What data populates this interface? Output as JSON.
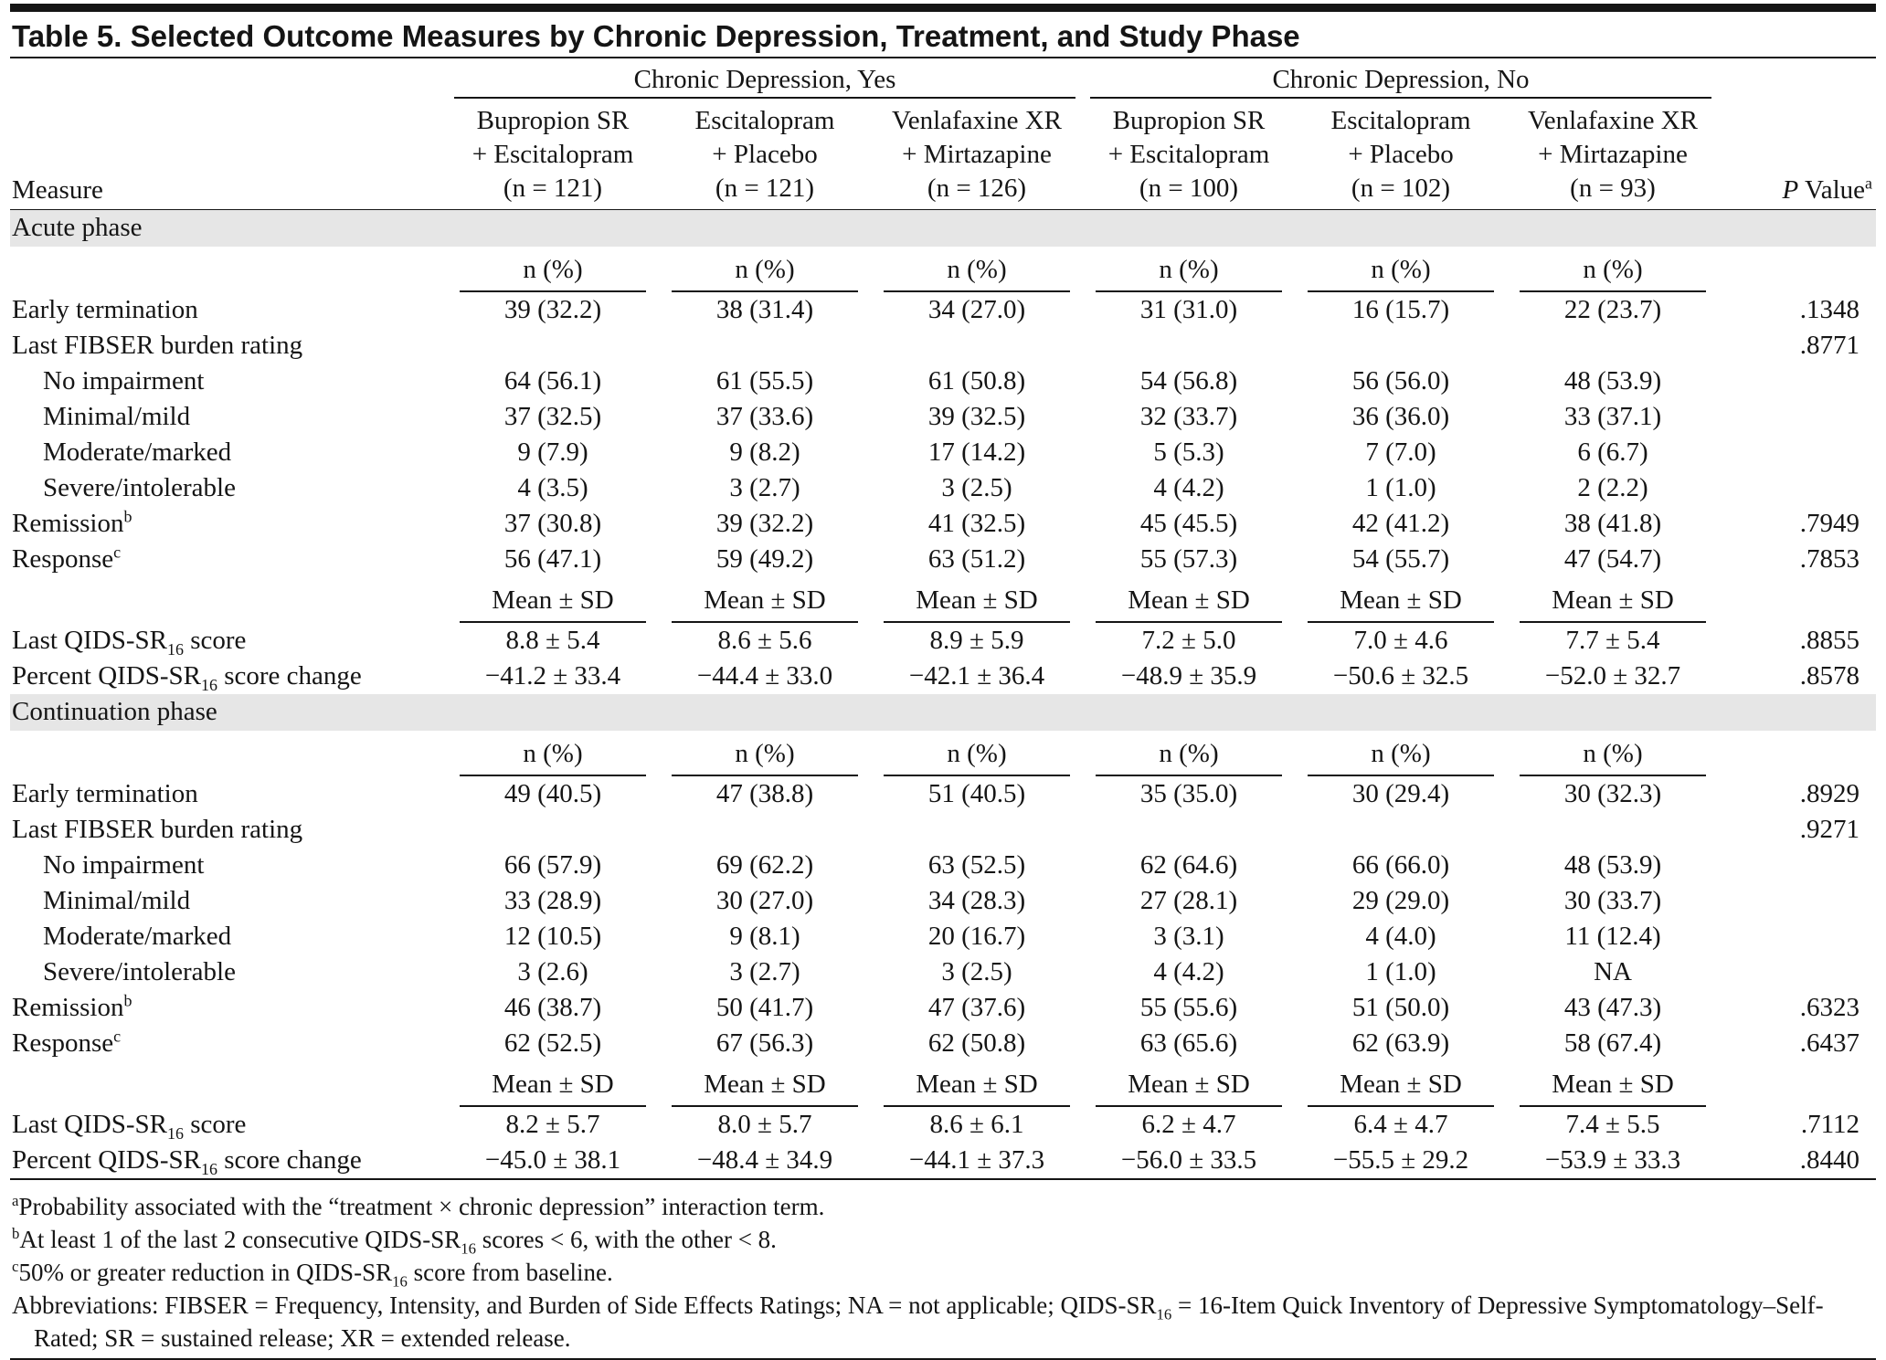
{
  "title": "Table 5. Selected Outcome Measures by Chronic Depression, Treatment, and Study Phase",
  "header": {
    "measure": "Measure",
    "groups": [
      "Chronic Depression, Yes",
      "Chronic Depression, No"
    ],
    "columns": [
      [
        "Bupropion SR",
        "+ Escitalopram",
        "(n = 121)"
      ],
      [
        "Escitalopram",
        "+ Placebo",
        "(n = 121)"
      ],
      [
        "Venlafaxine XR",
        "+ Mirtazapine",
        "(n = 126)"
      ],
      [
        "Bupropion SR",
        "+ Escitalopram",
        "(n = 100)"
      ],
      [
        "Escitalopram",
        "+ Placebo",
        "(n = 102)"
      ],
      [
        "Venlafaxine XR",
        "+ Mirtazapine",
        "(n = 93)"
      ]
    ],
    "p_value": [
      {
        "i": "P"
      },
      {
        "t": " Value"
      },
      {
        "sup": "a"
      }
    ]
  },
  "phases": [
    {
      "name": "Acute phase",
      "blocks": [
        {
          "unit": "n (%)",
          "rows": [
            {
              "label": [
                {
                  "t": "Early termination"
                }
              ],
              "values": [
                "39 (32.2)",
                "38 (31.4)",
                "34 (27.0)",
                "31 (31.0)",
                "16 (15.7)",
                "22 (23.7)"
              ],
              "p": ".1348"
            },
            {
              "label": [
                {
                  "t": "Last FIBSER burden rating"
                }
              ],
              "p": ".8771",
              "items": [
                {
                  "label": "No impairment",
                  "values": [
                    "64 (56.1)",
                    "61 (55.5)",
                    "61 (50.8)",
                    "54 (56.8)",
                    "56 (56.0)",
                    "48 (53.9)"
                  ]
                },
                {
                  "label": "Minimal/mild",
                  "values": [
                    "37 (32.5)",
                    "37 (33.6)",
                    "39 (32.5)",
                    "32 (33.7)",
                    "36 (36.0)",
                    "33 (37.1)"
                  ]
                },
                {
                  "label": "Moderate/marked",
                  "values": [
                    "9 (7.9)",
                    "9 (8.2)",
                    "17 (14.2)",
                    "5 (5.3)",
                    "7 (7.0)",
                    "6 (6.7)"
                  ]
                },
                {
                  "label": "Severe/intolerable",
                  "values": [
                    "4 (3.5)",
                    "3 (2.7)",
                    "3 (2.5)",
                    "4 (4.2)",
                    "1 (1.0)",
                    "2 (2.2)"
                  ]
                }
              ]
            },
            {
              "label": [
                {
                  "t": "Remission"
                },
                {
                  "sup": "b"
                }
              ],
              "values": [
                "37 (30.8)",
                "39 (32.2)",
                "41 (32.5)",
                "45 (45.5)",
                "42 (41.2)",
                "38 (41.8)"
              ],
              "p": ".7949"
            },
            {
              "label": [
                {
                  "t": "Response"
                },
                {
                  "sup": "c"
                }
              ],
              "values": [
                "56 (47.1)",
                "59 (49.2)",
                "63 (51.2)",
                "55 (57.3)",
                "54 (55.7)",
                "47 (54.7)"
              ],
              "p": ".7853"
            }
          ]
        },
        {
          "unit": "Mean ± SD",
          "rows": [
            {
              "label": [
                {
                  "t": "Last QIDS-SR"
                },
                {
                  "sub": "16"
                },
                {
                  "t": " score"
                }
              ],
              "values": [
                "8.8 ± 5.4",
                "8.6 ± 5.6",
                "8.9 ± 5.9",
                "7.2 ± 5.0",
                "7.0 ± 4.6",
                "7.7 ± 5.4"
              ],
              "p": ".8855"
            },
            {
              "label": [
                {
                  "t": "Percent QIDS-SR"
                },
                {
                  "sub": "16"
                },
                {
                  "t": " score change"
                }
              ],
              "values": [
                "−41.2 ± 33.4",
                "−44.4 ± 33.0",
                "−42.1 ± 36.4",
                "−48.9 ± 35.9",
                "−50.6 ± 32.5",
                "−52.0 ± 32.7"
              ],
              "p": ".8578"
            }
          ]
        }
      ]
    },
    {
      "name": "Continuation phase",
      "blocks": [
        {
          "unit": "n (%)",
          "rows": [
            {
              "label": [
                {
                  "t": "Early termination"
                }
              ],
              "values": [
                "49 (40.5)",
                "47 (38.8)",
                "51 (40.5)",
                "35 (35.0)",
                "30 (29.4)",
                "30 (32.3)"
              ],
              "p": ".8929"
            },
            {
              "label": [
                {
                  "t": "Last FIBSER burden rating"
                }
              ],
              "p": ".9271",
              "items": [
                {
                  "label": "No impairment",
                  "values": [
                    "66 (57.9)",
                    "69 (62.2)",
                    "63 (52.5)",
                    "62 (64.6)",
                    "66 (66.0)",
                    "48 (53.9)"
                  ]
                },
                {
                  "label": "Minimal/mild",
                  "values": [
                    "33 (28.9)",
                    "30 (27.0)",
                    "34 (28.3)",
                    "27 (28.1)",
                    "29 (29.0)",
                    "30 (33.7)"
                  ]
                },
                {
                  "label": "Moderate/marked",
                  "values": [
                    "12 (10.5)",
                    "9 (8.1)",
                    "20 (16.7)",
                    "3 (3.1)",
                    "4 (4.0)",
                    "11 (12.4)"
                  ]
                },
                {
                  "label": "Severe/intolerable",
                  "values": [
                    "3 (2.6)",
                    "3 (2.7)",
                    "3 (2.5)",
                    "4 (4.2)",
                    "1 (1.0)",
                    "NA"
                  ]
                }
              ]
            },
            {
              "label": [
                {
                  "t": "Remission"
                },
                {
                  "sup": "b"
                }
              ],
              "values": [
                "46 (38.7)",
                "50 (41.7)",
                "47 (37.6)",
                "55 (55.6)",
                "51 (50.0)",
                "43 (47.3)"
              ],
              "p": ".6323"
            },
            {
              "label": [
                {
                  "t": "Response"
                },
                {
                  "sup": "c"
                }
              ],
              "values": [
                "62 (52.5)",
                "67 (56.3)",
                "62 (50.8)",
                "63 (65.6)",
                "62 (63.9)",
                "58 (67.4)"
              ],
              "p": ".6437"
            }
          ]
        },
        {
          "unit": "Mean ± SD",
          "rows": [
            {
              "label": [
                {
                  "t": "Last QIDS-SR"
                },
                {
                  "sub": "16"
                },
                {
                  "t": " score"
                }
              ],
              "values": [
                "8.2 ± 5.7",
                "8.0 ± 5.7",
                "8.6 ± 6.1",
                "6.2 ± 4.7",
                "6.4 ± 4.7",
                "7.4 ± 5.5"
              ],
              "p": ".7112"
            },
            {
              "label": [
                {
                  "t": "Percent QIDS-SR"
                },
                {
                  "sub": "16"
                },
                {
                  "t": " score change"
                }
              ],
              "values": [
                "−45.0 ± 38.1",
                "−48.4 ± 34.9",
                "−44.1 ± 37.3",
                "−56.0 ± 33.5",
                "−55.5 ± 29.2",
                "−53.9 ± 33.3"
              ],
              "p": ".8440"
            }
          ]
        }
      ]
    }
  ],
  "footnotes": [
    [
      {
        "sup": "a"
      },
      {
        "t": "Probability associated with the “treatment × chronic depression” interaction term."
      }
    ],
    [
      {
        "sup": "b"
      },
      {
        "t": "At least 1 of the last 2 consecutive QIDS-SR"
      },
      {
        "sub": "16"
      },
      {
        "t": " scores < 6, with the other < 8."
      }
    ],
    [
      {
        "sup": "c"
      },
      {
        "t": "50% or greater reduction in QIDS-SR"
      },
      {
        "sub": "16"
      },
      {
        "t": " score from baseline."
      }
    ],
    [
      {
        "t": "Abbreviations: FIBSER = Frequency, Intensity, and Burden of Side Effects Ratings; NA = not applicable; QIDS-SR"
      },
      {
        "sub": "16"
      },
      {
        "t": " = 16-Item Quick Inventory of Depressive Symptomatology–Self-Rated; SR = sustained release; XR = extended release."
      }
    ]
  ]
}
